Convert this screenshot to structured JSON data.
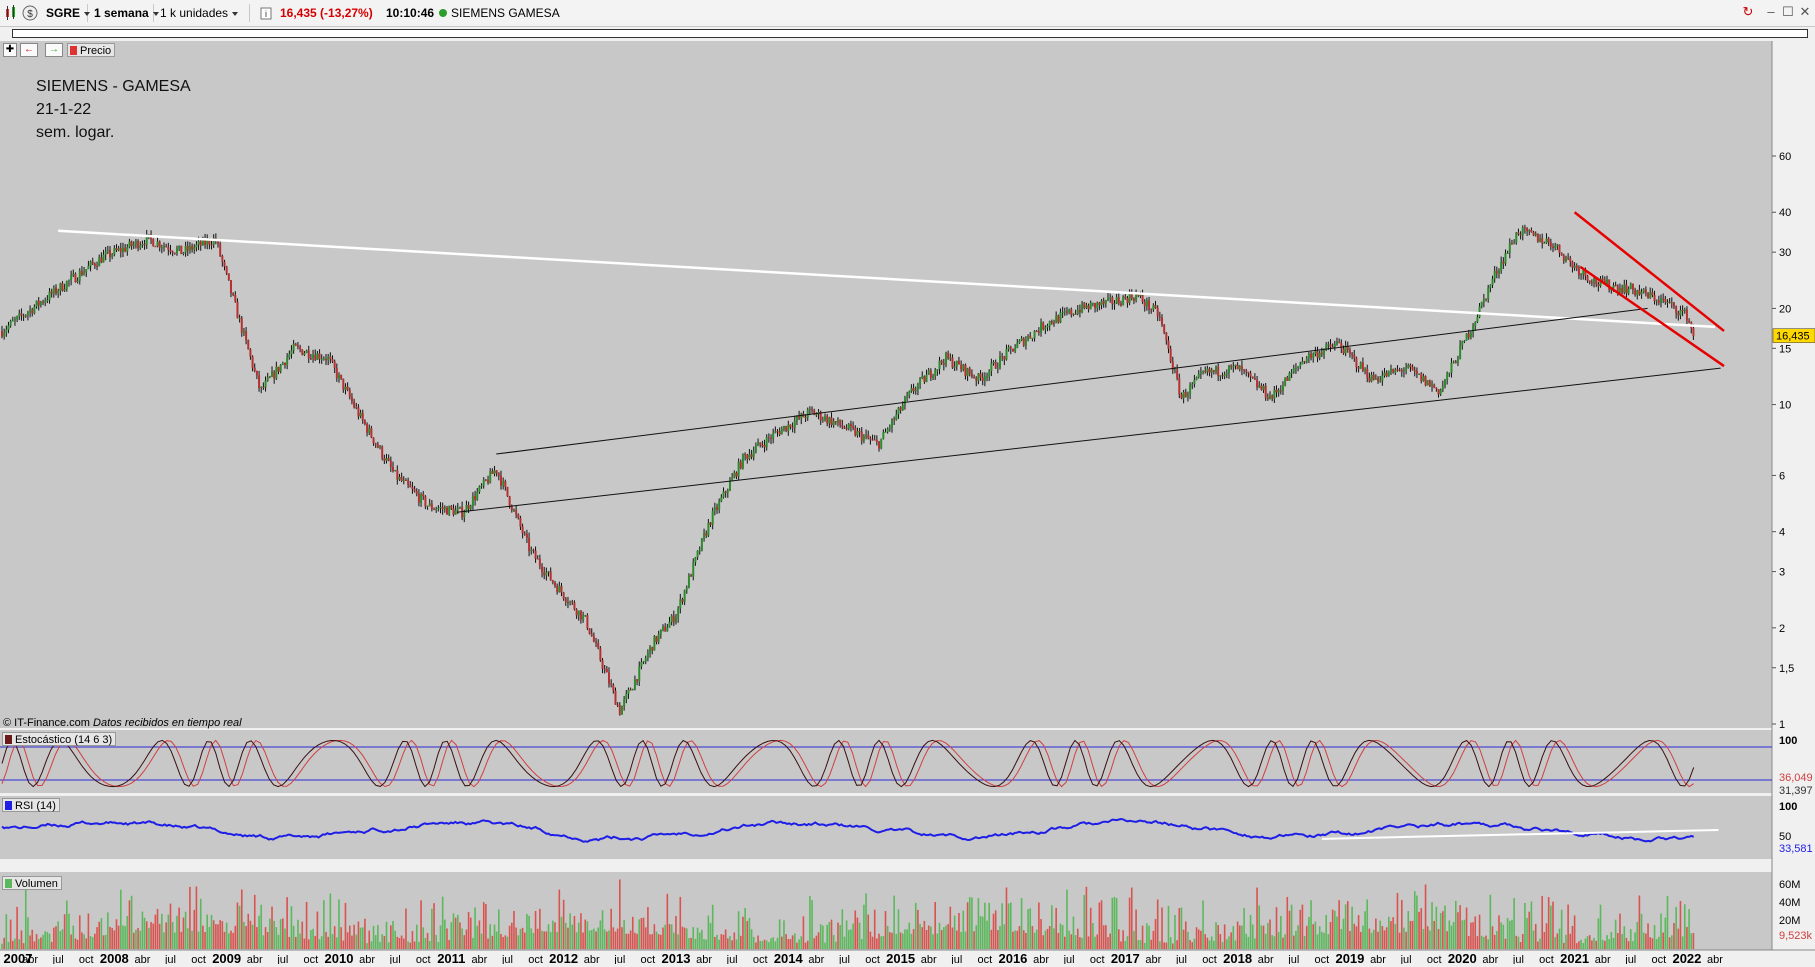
{
  "toolbar": {
    "symbol": "SGRE",
    "timeframe": "1 semana",
    "units": "1 k unidades",
    "info_icon": "info-icon",
    "quote": "16,435 (-13,27%)",
    "time": "10:10:46",
    "status_color": "#2a9d2a",
    "name": "SIEMENS GAMESA",
    "quote_color": "#d40000"
  },
  "subtoolbar": {
    "price_label": "Precio"
  },
  "annotations": {
    "line1": "SIEMENS - GAMESA",
    "line2": "21-1-22",
    "line3": "sem. logar."
  },
  "credit": {
    "source": "© IT-Finance.com",
    "realtime": "Datos recibidos en tiempo real"
  },
  "indicators": {
    "stochastic": {
      "label": "Estocástico (14 6 3)",
      "value_k": "36,049",
      "value_d": "31,397",
      "top": "100"
    },
    "rsi": {
      "label": "RSI (14)",
      "value": "33,581",
      "top": "100",
      "mid": "50"
    },
    "volume": {
      "label": "Volumen",
      "value": "9,523k",
      "ticks": [
        "60M",
        "40M",
        "20M"
      ]
    }
  },
  "price_axis": {
    "ticks": [
      "60",
      "40",
      "30",
      "20",
      "15",
      "10",
      "6",
      "4",
      "3",
      "2",
      "1,5",
      "1"
    ],
    "last_price": "16,435"
  },
  "time_axis": {
    "labels": [
      {
        "text": "2007",
        "bold": true
      },
      {
        "text": "abr",
        "bold": false
      },
      {
        "text": "jul",
        "bold": false
      },
      {
        "text": "oct",
        "bold": false
      },
      {
        "text": "2008",
        "bold": true
      },
      {
        "text": "abr",
        "bold": false
      },
      {
        "text": "jul",
        "bold": false
      },
      {
        "text": "oct",
        "bold": false
      },
      {
        "text": "2009",
        "bold": true
      },
      {
        "text": "abr",
        "bold": false
      },
      {
        "text": "jul",
        "bold": false
      },
      {
        "text": "oct",
        "bold": false
      },
      {
        "text": "2010",
        "bold": true
      },
      {
        "text": "abr",
        "bold": false
      },
      {
        "text": "jul",
        "bold": false
      },
      {
        "text": "oct",
        "bold": false
      },
      {
        "text": "2011",
        "bold": true
      },
      {
        "text": "abr",
        "bold": false
      },
      {
        "text": "jul",
        "bold": false
      },
      {
        "text": "oct",
        "bold": false
      },
      {
        "text": "2012",
        "bold": true
      },
      {
        "text": "abr",
        "bold": false
      },
      {
        "text": "jul",
        "bold": false
      },
      {
        "text": "oct",
        "bold": false
      },
      {
        "text": "2013",
        "bold": true
      },
      {
        "text": "abr",
        "bold": false
      },
      {
        "text": "jul",
        "bold": false
      },
      {
        "text": "oct",
        "bold": false
      },
      {
        "text": "2014",
        "bold": true
      },
      {
        "text": "abr",
        "bold": false
      },
      {
        "text": "jul",
        "bold": false
      },
      {
        "text": "oct",
        "bold": false
      },
      {
        "text": "2015",
        "bold": true
      },
      {
        "text": "abr",
        "bold": false
      },
      {
        "text": "jul",
        "bold": false
      },
      {
        "text": "oct",
        "bold": false
      },
      {
        "text": "2016",
        "bold": true
      },
      {
        "text": "abr",
        "bold": false
      },
      {
        "text": "jul",
        "bold": false
      },
      {
        "text": "oct",
        "bold": false
      },
      {
        "text": "2017",
        "bold": true
      },
      {
        "text": "abr",
        "bold": false
      },
      {
        "text": "jul",
        "bold": false
      },
      {
        "text": "oct",
        "bold": false
      },
      {
        "text": "2018",
        "bold": true
      },
      {
        "text": "abr",
        "bold": false
      },
      {
        "text": "jul",
        "bold": false
      },
      {
        "text": "oct",
        "bold": false
      },
      {
        "text": "2019",
        "bold": true
      },
      {
        "text": "abr",
        "bold": false
      },
      {
        "text": "jul",
        "bold": false
      },
      {
        "text": "oct",
        "bold": false
      },
      {
        "text": "2020",
        "bold": true
      },
      {
        "text": "abr",
        "bold": false
      },
      {
        "text": "jul",
        "bold": false
      },
      {
        "text": "oct",
        "bold": false
      },
      {
        "text": "2021",
        "bold": true
      },
      {
        "text": "abr",
        "bold": false
      },
      {
        "text": "jul",
        "bold": false
      },
      {
        "text": "oct",
        "bold": false
      },
      {
        "text": "2022",
        "bold": true
      },
      {
        "text": "abr",
        "bold": false
      }
    ]
  },
  "colors": {
    "panel_bg": "#c8c8c8",
    "rsi_line": "#1e1ee6",
    "trend_white": "#ffffff",
    "trend_red": "#e60000",
    "last_price_bg": "#ffd800"
  },
  "chart_data": {
    "type": "line",
    "title": "SIEMENS - GAMESA",
    "scale": "log",
    "ylim": [
      1,
      70
    ],
    "x": [
      2007.0,
      2007.5,
      2007.9,
      2008.3,
      2008.6,
      2008.9,
      2009.0,
      2009.3,
      2009.6,
      2009.9,
      2010.2,
      2010.5,
      2010.8,
      2011.1,
      2011.4,
      2011.7,
      2011.9,
      2012.2,
      2012.5,
      2012.8,
      2013.0,
      2013.3,
      2013.6,
      2013.9,
      2014.2,
      2014.5,
      2014.8,
      2015.1,
      2015.4,
      2015.7,
      2016.0,
      2016.3,
      2016.6,
      2016.9,
      2017.1,
      2017.3,
      2017.5,
      2017.7,
      2018.0,
      2018.3,
      2018.6,
      2018.9,
      2019.2,
      2019.5,
      2019.8,
      2020.1,
      2020.3,
      2020.5,
      2020.8,
      2021.0,
      2021.2,
      2021.5,
      2021.8,
      2022.0,
      2022.06
    ],
    "y": [
      17,
      23,
      29,
      33,
      30,
      33,
      25,
      11,
      15,
      14,
      9,
      6,
      4.8,
      4.6,
      6.3,
      3.5,
      2.8,
      2.1,
      1.1,
      1.8,
      2.2,
      4.3,
      6.8,
      8.2,
      9.5,
      8.5,
      7.5,
      11,
      14,
      12,
      15,
      18,
      20,
      21,
      22,
      19,
      10.5,
      12.5,
      13,
      10.5,
      14,
      15.5,
      12,
      13,
      11,
      18,
      26,
      35,
      32,
      27,
      24,
      23,
      21,
      19,
      16.435
    ],
    "last": 16.435,
    "change_pct": -13.27
  }
}
